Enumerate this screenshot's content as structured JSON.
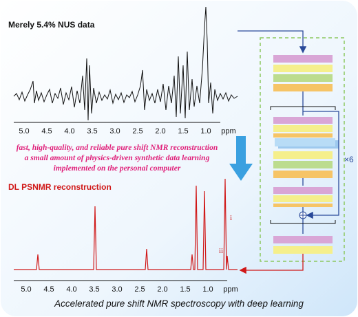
{
  "top_panel": {
    "label": "Merely 5.4% NUS data",
    "axis_ticks": [
      "5.0",
      "4.5",
      "4.0",
      "3.5",
      "3.0",
      "2.5",
      "2.0",
      "1.5",
      "1.0",
      "ppm"
    ]
  },
  "highlights": [
    "fast, high-quality, and reliable pure shift NMR reconstruction",
    "a small amount of physics-driven synthetic data learning",
    "implemented on the personal computer"
  ],
  "bottom_panel": {
    "label": "DL PSNMR reconstruction",
    "axis_ticks": [
      "5.0",
      "4.5",
      "4.0",
      "3.5",
      "3.0",
      "2.5",
      "2.0",
      "1.5",
      "1.0",
      "ppm"
    ],
    "peak_labels": [
      "i",
      "ii"
    ]
  },
  "network": {
    "repeat_label": "×6"
  },
  "caption": "Accelerated pure shift NMR spectroscopy with deep learning"
}
